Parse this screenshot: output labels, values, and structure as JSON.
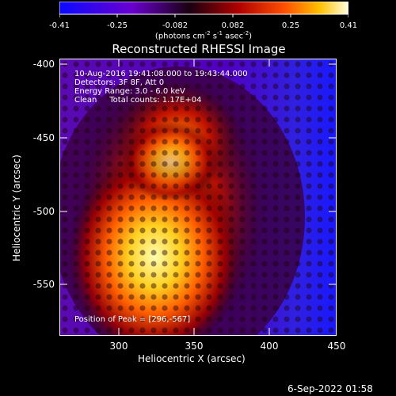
{
  "colorbar": {
    "ticks": [
      "-0.41",
      "-0.25",
      "-0.082",
      "0.082",
      "0.25",
      "0.41"
    ],
    "unit_prefix": "(photons cm",
    "unit_exp1": "-2",
    "unit_mid1": " s",
    "unit_exp2": "-1",
    "unit_mid2": " asec",
    "unit_exp3": "-2",
    "unit_suffix": ")"
  },
  "title": "Reconstructed RHESSI Image",
  "annotations": {
    "time_range": "10-Aug-2016 19:41:08.000 to 19:43:44.000",
    "detectors": "Detectors: 3F 8F, Att 0",
    "energy": "Energy Range: 3.0 - 6.0 keV",
    "clean": "Clean     Total counts: 1.17E+04",
    "peak": "Position of Peak = [296,-567]"
  },
  "axes": {
    "x_label": "Heliocentric X (arcsec)",
    "y_label": "Heliocentric Y (arcsec)",
    "x_ticks": [
      "300",
      "350",
      "400",
      "450"
    ],
    "y_ticks": [
      "-400",
      "-450",
      "-500",
      "-550"
    ]
  },
  "footer": "6-Sep-2022 01:58",
  "colors": {
    "background": "#000000",
    "frame": "#ffffff"
  }
}
